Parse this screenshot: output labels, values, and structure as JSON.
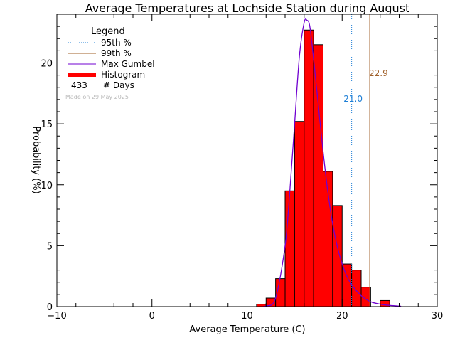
{
  "chart_data": {
    "type": "bar",
    "title": "Average Temperatures at Lochside Station during August",
    "xlabel": "Average Temperature (C)",
    "ylabel": "Probability (%)",
    "xlim": [
      -10,
      30
    ],
    "ylim": [
      0,
      24
    ],
    "x_ticks": [
      "−10",
      "0",
      "10",
      "20",
      "30"
    ],
    "x_tick_values": [
      -10,
      0,
      10,
      20,
      30
    ],
    "y_ticks": [
      "0",
      "5",
      "10",
      "15",
      "20"
    ],
    "y_tick_values": [
      0,
      5,
      10,
      15,
      20
    ],
    "minor_ticks": true,
    "grid": false,
    "histogram": {
      "bin_width": 1,
      "bins": [
        {
          "x0": 11,
          "x1": 12,
          "value": 0.2
        },
        {
          "x0": 12,
          "x1": 13,
          "value": 0.7
        },
        {
          "x0": 13,
          "x1": 14,
          "value": 2.3
        },
        {
          "x0": 14,
          "x1": 15,
          "value": 9.5
        },
        {
          "x0": 15,
          "x1": 16,
          "value": 15.2
        },
        {
          "x0": 16,
          "x1": 17,
          "value": 22.7
        },
        {
          "x0": 17,
          "x1": 18,
          "value": 21.5
        },
        {
          "x0": 18,
          "x1": 19,
          "value": 11.1
        },
        {
          "x0": 19,
          "x1": 20,
          "value": 8.3
        },
        {
          "x0": 20,
          "x1": 21,
          "value": 3.5
        },
        {
          "x0": 21,
          "x1": 22,
          "value": 3.0
        },
        {
          "x0": 22,
          "x1": 23,
          "value": 1.6
        },
        {
          "x0": 23,
          "x1": 24,
          "value": 0.0
        },
        {
          "x0": 24,
          "x1": 25,
          "value": 0.5
        }
      ],
      "color": "#ff0000"
    },
    "gumbel_curve": {
      "x": [
        11,
        12,
        13,
        14,
        14.5,
        15,
        15.5,
        16,
        16.3,
        16.6,
        17,
        17.5,
        18,
        18.5,
        19,
        19.5,
        20,
        20.5,
        21,
        22,
        23,
        24,
        25,
        26.2
      ],
      "y": [
        0,
        0.05,
        0.7,
        5.0,
        9.5,
        15.0,
        20.5,
        23.3,
        23.5,
        23.0,
        20.3,
        16.5,
        12.7,
        9.4,
        6.8,
        4.9,
        3.5,
        2.5,
        1.8,
        0.9,
        0.4,
        0.2,
        0.1,
        0.03
      ],
      "color": "#7000d0"
    },
    "percentile_lines": [
      {
        "name": "95th %",
        "x": 21.0,
        "label": "21.0",
        "color": "#1e7fd6",
        "style": "dotted"
      },
      {
        "name": "99th %",
        "x": 22.9,
        "label": "22.9",
        "color": "#a0602a",
        "style": "solid"
      }
    ],
    "legend": {
      "title": "Legend",
      "placement": "top-left",
      "entries": [
        {
          "label": "95th %",
          "color": "#1e7fd6",
          "style": "dotted"
        },
        {
          "label": "99th %",
          "color": "#a0602a",
          "style": "solid"
        },
        {
          "label": "Max Gumbel",
          "color": "#7000d0",
          "style": "solid"
        },
        {
          "label": "Histogram",
          "color": "#ff0000",
          "style": "thick"
        }
      ],
      "days_count": "433",
      "days_label": "# Days"
    },
    "note": "Made on 29 May 2025"
  }
}
